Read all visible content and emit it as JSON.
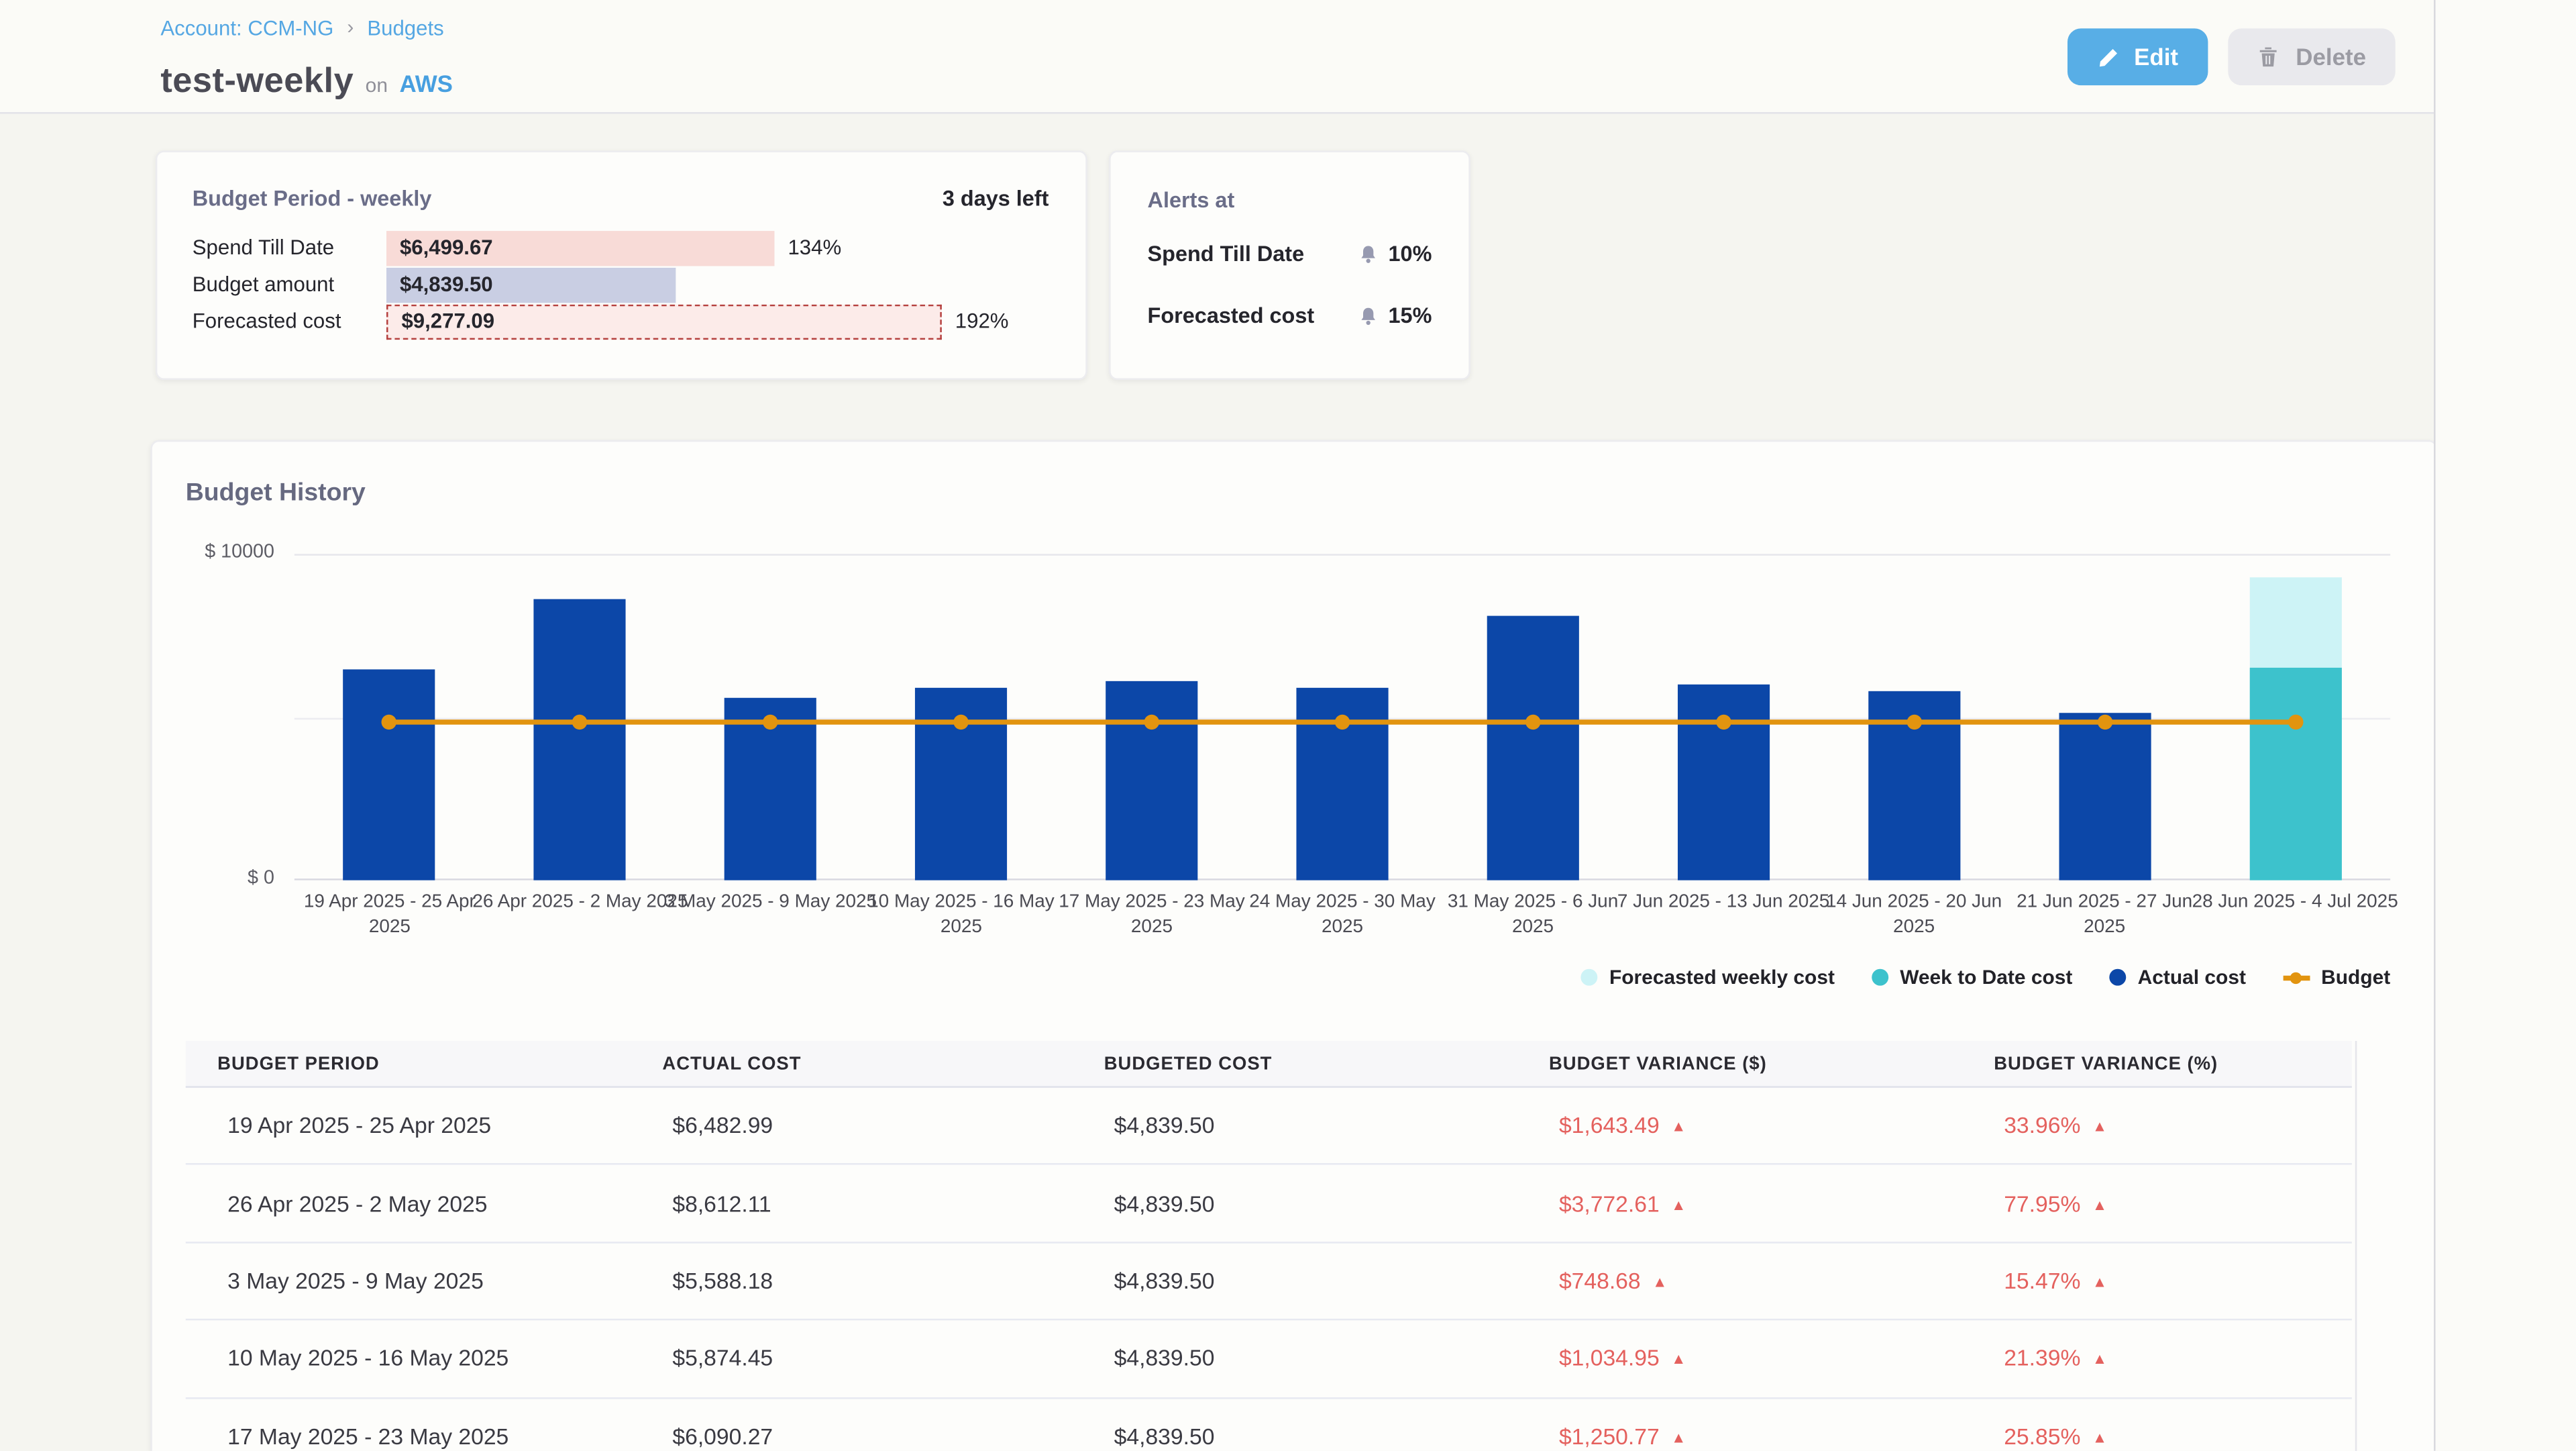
{
  "header": {
    "breadcrumb": {
      "account": "Account: CCM-NG",
      "separator": "›",
      "section": "Budgets"
    },
    "title": "test-weekly",
    "title_connector": "on",
    "platform": "AWS",
    "edit_label": "Edit",
    "delete_label": "Delete"
  },
  "budget_period_card": {
    "title": "Budget Period - weekly",
    "days_left": "3 days left",
    "rows": [
      {
        "label": "Spend Till Date",
        "amount": "$6,499.67",
        "percent": 134,
        "percent_label": "134%",
        "variant": "spend"
      },
      {
        "label": "Budget amount",
        "amount": "$4,839.50",
        "percent": 100,
        "percent_label": "",
        "variant": "budget"
      },
      {
        "label": "Forecasted cost",
        "amount": "$9,277.09",
        "percent": 192,
        "percent_label": "192%",
        "variant": "forecast"
      }
    ]
  },
  "alerts_card": {
    "title": "Alerts at",
    "rows": [
      {
        "label": "Spend Till Date",
        "threshold": "10%"
      },
      {
        "label": "Forecasted cost",
        "threshold": "15%"
      }
    ]
  },
  "chart_data": {
    "type": "bar",
    "title": "Budget History",
    "y_axis": {
      "min": 0,
      "max": 10000,
      "min_label": "$ 0",
      "max_label": "$ 10000",
      "gridlines": [
        0,
        5000,
        10000
      ]
    },
    "categories": [
      "19 Apr 2025 - 25 Apr 2025",
      "26 Apr 2025 - 2 May 2025",
      "3 May 2025 - 9 May 2025",
      "10 May 2025 - 16 May 2025",
      "17 May 2025 - 23 May 2025",
      "24 May 2025 - 30 May 2025",
      "31 May 2025 - 6 Jun 2025",
      "7 Jun 2025 - 13 Jun 2025",
      "14 Jun 2025 - 20 Jun 2025",
      "21 Jun 2025 - 27 Jun 2025",
      "28 Jun 2025 - 4 Jul 2025"
    ],
    "series": [
      {
        "name": "Forecasted weekly cost",
        "type": "bar",
        "color": "#cdf3f6",
        "values": [
          null,
          null,
          null,
          null,
          null,
          null,
          null,
          null,
          null,
          null,
          9277.09
        ]
      },
      {
        "name": "Week to Date cost",
        "type": "bar",
        "color": "#3dc2cc",
        "values": [
          null,
          null,
          null,
          null,
          null,
          null,
          null,
          null,
          null,
          null,
          6499.67
        ]
      },
      {
        "name": "Actual cost",
        "type": "bar",
        "color": "#0c47a8",
        "values": [
          6482.99,
          8612.11,
          5588.18,
          5874.45,
          6090.27,
          5880,
          8100,
          6000,
          5780,
          5130,
          null
        ]
      },
      {
        "name": "Budget",
        "type": "line",
        "color": "#e2940f",
        "values": [
          4839.5,
          4839.5,
          4839.5,
          4839.5,
          4839.5,
          4839.5,
          4839.5,
          4839.5,
          4839.5,
          4839.5,
          4839.5
        ]
      }
    ],
    "legend": [
      {
        "label": "Forecasted weekly cost",
        "color": "#cdf3f6",
        "marker": "dot"
      },
      {
        "label": "Week to Date cost",
        "color": "#3dc2cc",
        "marker": "dot"
      },
      {
        "label": "Actual cost",
        "color": "#0c47a8",
        "marker": "dot"
      },
      {
        "label": "Budget",
        "color": "#e2940f",
        "marker": "line-dot"
      }
    ],
    "legend_position": "bottom-right"
  },
  "table": {
    "columns": [
      "BUDGET PERIOD",
      "ACTUAL COST",
      "BUDGETED COST",
      "BUDGET VARIANCE ($)",
      "BUDGET VARIANCE (%)"
    ],
    "rows": [
      {
        "period": "19 Apr 2025 - 25 Apr 2025",
        "actual": "$6,482.99",
        "budgeted": "$4,839.50",
        "variance_usd": "$1,643.49",
        "variance_pct": "33.96%"
      },
      {
        "period": "26 Apr 2025 - 2 May 2025",
        "actual": "$8,612.11",
        "budgeted": "$4,839.50",
        "variance_usd": "$3,772.61",
        "variance_pct": "77.95%"
      },
      {
        "period": "3 May 2025 - 9 May 2025",
        "actual": "$5,588.18",
        "budgeted": "$4,839.50",
        "variance_usd": "$748.68",
        "variance_pct": "15.47%"
      },
      {
        "period": "10 May 2025 - 16 May 2025",
        "actual": "$5,874.45",
        "budgeted": "$4,839.50",
        "variance_usd": "$1,034.95",
        "variance_pct": "21.39%"
      },
      {
        "period": "17 May 2025 - 23 May 2025",
        "actual": "$6,090.27",
        "budgeted": "$4,839.50",
        "variance_usd": "$1,250.77",
        "variance_pct": "25.85%"
      }
    ],
    "variance_color": "#e4615e",
    "up_arrow": "▲"
  }
}
